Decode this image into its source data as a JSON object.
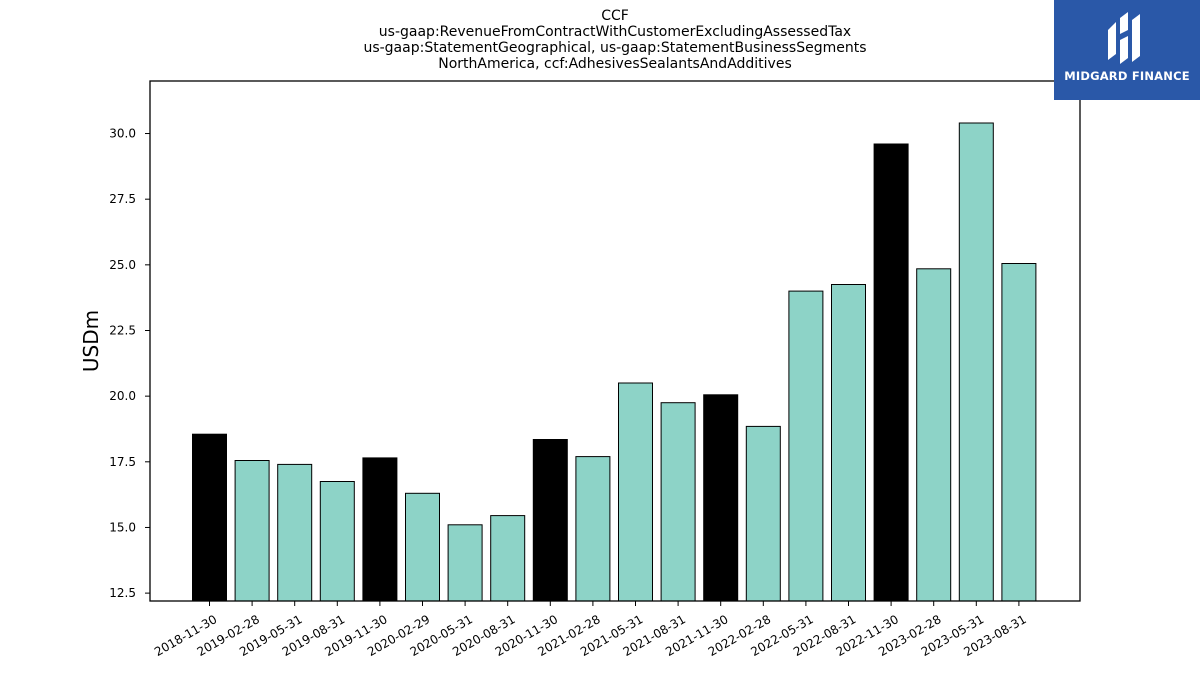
{
  "chart_data": {
    "type": "bar",
    "title_lines": [
      "CCF",
      "us-gaap:RevenueFromContractWithCustomerExcludingAssessedTax",
      "us-gaap:StatementGeographical, us-gaap:StatementBusinessSegments",
      "NorthAmerica, ccf:AdhesivesSealantsAndAdditives"
    ],
    "ylabel": "USDm",
    "ylim": [
      12.2,
      32.0
    ],
    "yticks": [
      "12.5",
      "15.0",
      "17.5",
      "20.0",
      "22.5",
      "25.0",
      "27.5",
      "30.0"
    ],
    "categories": [
      "2018-11-30",
      "2019-02-28",
      "2019-05-31",
      "2019-08-31",
      "2019-11-30",
      "2020-02-29",
      "2020-05-31",
      "2020-08-31",
      "2020-11-30",
      "2021-02-28",
      "2021-05-31",
      "2021-08-31",
      "2021-11-30",
      "2022-02-28",
      "2022-05-31",
      "2022-08-31",
      "2022-11-30",
      "2023-02-28",
      "2023-05-31",
      "2023-08-31"
    ],
    "values": [
      18.55,
      17.55,
      17.4,
      16.75,
      17.65,
      16.3,
      15.1,
      15.45,
      18.35,
      17.7,
      20.5,
      19.75,
      20.05,
      18.85,
      24.0,
      24.25,
      29.6,
      24.85,
      30.4,
      25.05
    ],
    "highlight": [
      true,
      false,
      false,
      false,
      true,
      false,
      false,
      false,
      true,
      false,
      false,
      false,
      true,
      false,
      false,
      false,
      true,
      false,
      false,
      false
    ],
    "colors": {
      "normal": "#8dd3c7",
      "highlight": "#000000",
      "edge": "#000000"
    }
  },
  "logo": {
    "text": "MIDGARD FINANCE",
    "background": "#2a58a8"
  }
}
